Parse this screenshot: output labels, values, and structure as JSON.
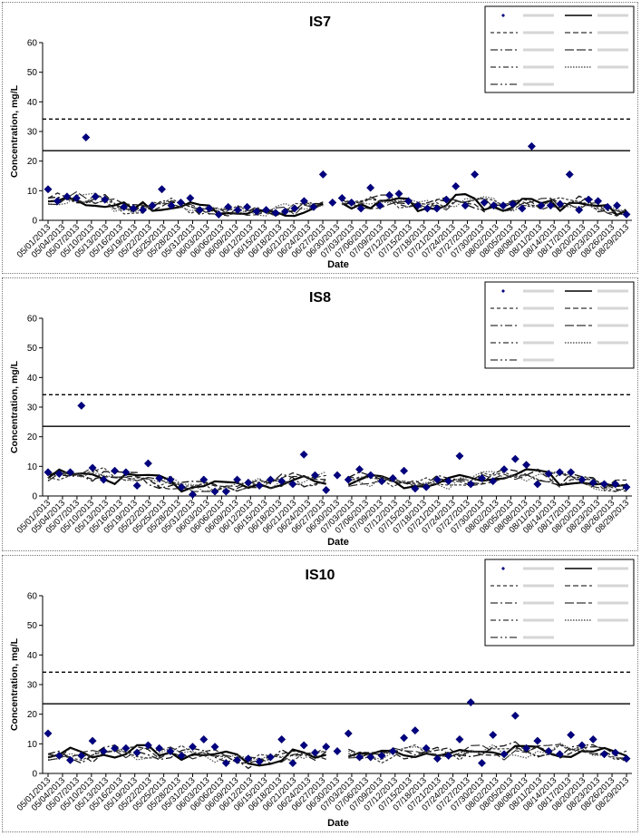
{
  "chart_data": [
    {
      "type": "scatter",
      "title": "IS7",
      "xlabel": "Date",
      "ylabel": "Concentration, mg/L",
      "ylim": [
        0,
        60
      ],
      "yticks": [
        0,
        10,
        20,
        30,
        40,
        50,
        60
      ],
      "xticks": [
        "05/01/2013",
        "05/04/2013",
        "05/07/2013",
        "05/10/2013",
        "05/13/2013",
        "05/16/2013",
        "05/19/2013",
        "05/22/2013",
        "05/25/2013",
        "05/28/2013",
        "05/31/2013",
        "06/03/2013",
        "06/06/2013",
        "06/09/2013",
        "06/12/2013",
        "06/15/2013",
        "06/18/2013",
        "06/21/2013",
        "06/24/2013",
        "06/27/2013",
        "06/30/2013",
        "07/03/2013",
        "07/06/2013",
        "07/09/2013",
        "07/12/2013",
        "07/15/2013",
        "07/18/2013",
        "07/21/2013",
        "07/24/2013",
        "07/27/2013",
        "07/30/2013",
        "08/02/2013",
        "08/05/2013",
        "08/08/2013",
        "08/11/2013",
        "08/14/2013",
        "08/17/2013",
        "08/20/2013",
        "08/23/2013",
        "08/26/2013",
        "08/29/2013"
      ],
      "legend": {
        "placement": "top-right",
        "entries": [
          "",
          "",
          "",
          "",
          "",
          "",
          "",
          "",
          "",
          ""
        ]
      },
      "reference_lines": [
        {
          "style": "dashed",
          "value": 34.2
        },
        {
          "style": "solid",
          "value": 23.5
        }
      ],
      "points": [
        [
          0,
          10.5
        ],
        [
          1,
          6.5
        ],
        [
          2,
          8
        ],
        [
          3,
          7.5
        ],
        [
          4,
          28
        ],
        [
          5,
          8
        ],
        [
          6,
          7
        ],
        [
          8,
          4.5
        ],
        [
          9,
          4
        ],
        [
          10,
          3.5
        ],
        [
          11,
          5
        ],
        [
          12,
          10.5
        ],
        [
          13,
          5
        ],
        [
          14,
          6
        ],
        [
          15,
          7.5
        ],
        [
          16,
          3.5
        ],
        [
          17,
          4
        ],
        [
          18,
          2
        ],
        [
          19,
          4.5
        ],
        [
          20,
          3.5
        ],
        [
          21,
          4.5
        ],
        [
          22,
          3
        ],
        [
          23,
          3.5
        ],
        [
          24,
          2.5
        ],
        [
          25,
          3
        ],
        [
          26,
          4
        ],
        [
          27,
          6.5
        ],
        [
          28,
          4.5
        ],
        [
          29,
          15.5
        ],
        [
          30,
          6
        ],
        [
          31,
          7.5
        ],
        [
          32,
          6
        ],
        [
          33,
          4
        ],
        [
          34,
          11
        ],
        [
          35,
          5
        ],
        [
          36,
          8.5
        ],
        [
          37,
          9
        ],
        [
          38,
          6.5
        ],
        [
          39,
          5
        ],
        [
          40,
          4
        ],
        [
          41,
          4
        ],
        [
          42,
          7
        ],
        [
          43,
          11.5
        ],
        [
          44,
          5
        ],
        [
          45,
          15.5
        ],
        [
          46,
          6
        ],
        [
          47,
          5
        ],
        [
          48,
          5
        ],
        [
          49,
          5.5
        ],
        [
          50,
          4
        ],
        [
          51,
          25
        ],
        [
          52,
          5
        ],
        [
          53,
          5
        ],
        [
          54,
          5.5
        ],
        [
          55,
          15.5
        ],
        [
          56,
          3.5
        ],
        [
          57,
          7
        ],
        [
          58,
          6.5
        ],
        [
          59,
          4.5
        ],
        [
          60,
          5
        ],
        [
          61,
          2
        ]
      ],
      "series_count": 9
    },
    {
      "type": "scatter",
      "title": "IS8",
      "xlabel": "Date",
      "ylabel": "Concentration, mg/L",
      "ylim": [
        0,
        60
      ],
      "yticks": [
        0,
        10,
        20,
        30,
        40,
        50,
        60
      ],
      "xticks": [
        "05/01/2013",
        "05/04/2013",
        "05/07/2013",
        "05/10/2013",
        "05/13/2013",
        "05/16/2013",
        "05/19/2013",
        "05/22/2013",
        "05/25/2013",
        "05/28/2013",
        "05/31/2013",
        "06/03/2013",
        "06/06/2013",
        "06/09/2013",
        "06/12/2013",
        "06/15/2013",
        "06/18/2013",
        "06/21/2013",
        "06/24/2013",
        "06/27/2013",
        "06/30/2013",
        "07/03/2013",
        "07/06/2013",
        "07/09/2013",
        "07/12/2013",
        "07/15/2013",
        "07/18/2013",
        "07/21/2013",
        "07/24/2013",
        "07/27/2013",
        "07/30/2013",
        "08/02/2013",
        "08/05/2013",
        "08/08/2013",
        "08/11/2013",
        "08/14/2013",
        "08/17/2013",
        "08/20/2013",
        "08/23/2013",
        "08/26/2013",
        "08/29/2013"
      ],
      "legend": {
        "placement": "top-right",
        "entries": [
          "",
          "",
          "",
          "",
          "",
          "",
          "",
          "",
          "",
          ""
        ]
      },
      "reference_lines": [
        {
          "style": "dashed",
          "value": 34.2
        },
        {
          "style": "solid",
          "value": 23.5
        }
      ],
      "points": [
        [
          0,
          8
        ],
        [
          1,
          7.5
        ],
        [
          2,
          8
        ],
        [
          3,
          30.5
        ],
        [
          4,
          9.5
        ],
        [
          5,
          5.5
        ],
        [
          6,
          8.5
        ],
        [
          7,
          8
        ],
        [
          8,
          3.5
        ],
        [
          9,
          11
        ],
        [
          10,
          6
        ],
        [
          11,
          5.5
        ],
        [
          12,
          3
        ],
        [
          13,
          0.5
        ],
        [
          14,
          5.5
        ],
        [
          15,
          1.5
        ],
        [
          16,
          1.5
        ],
        [
          17,
          5.5
        ],
        [
          18,
          4.5
        ],
        [
          19,
          3.5
        ],
        [
          20,
          5.5
        ],
        [
          21,
          5
        ],
        [
          22,
          4
        ],
        [
          23,
          14
        ],
        [
          24,
          7
        ],
        [
          25,
          2
        ],
        [
          26,
          7
        ],
        [
          27,
          5.5
        ],
        [
          28,
          9
        ],
        [
          29,
          7
        ],
        [
          30,
          5
        ],
        [
          31,
          6
        ],
        [
          32,
          8.5
        ],
        [
          33,
          2.5
        ],
        [
          34,
          3
        ],
        [
          35,
          5.5
        ],
        [
          36,
          5
        ],
        [
          37,
          13.5
        ],
        [
          38,
          4
        ],
        [
          39,
          6
        ],
        [
          40,
          5
        ],
        [
          41,
          9
        ],
        [
          42,
          12.5
        ],
        [
          43,
          10.5
        ],
        [
          44,
          4
        ],
        [
          45,
          7.5
        ],
        [
          46,
          8
        ],
        [
          47,
          8
        ],
        [
          48,
          5.5
        ],
        [
          49,
          4.5
        ],
        [
          50,
          4
        ],
        [
          51,
          4
        ],
        [
          52,
          3
        ]
      ],
      "series_count": 9
    },
    {
      "type": "scatter",
      "title": "IS10",
      "xlabel": "Date",
      "ylabel": "Concentration, mg/L",
      "ylim": [
        0,
        60
      ],
      "yticks": [
        0,
        10,
        20,
        30,
        40,
        50,
        60
      ],
      "xticks": [
        "05/01/2013",
        "05/04/2013",
        "05/07/2013",
        "05/10/2013",
        "05/13/2013",
        "05/16/2013",
        "05/19/2013",
        "05/22/2013",
        "05/25/2013",
        "05/28/2013",
        "05/31/2013",
        "06/03/2013",
        "06/06/2013",
        "06/09/2013",
        "06/12/2013",
        "06/15/2013",
        "06/18/2013",
        "06/21/2013",
        "06/24/2013",
        "06/27/2013",
        "06/30/2013",
        "07/03/2013",
        "07/06/2013",
        "07/09/2013",
        "07/12/2013",
        "07/15/2013",
        "07/18/2013",
        "07/21/2013",
        "07/24/2013",
        "07/27/2013",
        "07/30/2013",
        "08/02/2013",
        "08/05/2013",
        "08/08/2013",
        "08/11/2013",
        "08/14/2013",
        "08/17/2013",
        "08/20/2013",
        "08/23/2013",
        "08/26/2013",
        "08/29/2013"
      ],
      "legend": {
        "placement": "top-right",
        "entries": [
          "",
          "",
          "",
          "",
          "",
          "",
          "",
          "",
          "",
          ""
        ]
      },
      "reference_lines": [
        {
          "style": "dashed",
          "value": 34.2
        },
        {
          "style": "solid",
          "value": 23.5
        }
      ],
      "points": [
        [
          0,
          13.5
        ],
        [
          1,
          6
        ],
        [
          2,
          4.5
        ],
        [
          3,
          6
        ],
        [
          4,
          11
        ],
        [
          5,
          7.5
        ],
        [
          6,
          8.5
        ],
        [
          7,
          8.5
        ],
        [
          8,
          7
        ],
        [
          9,
          9.5
        ],
        [
          10,
          8.5
        ],
        [
          11,
          7.5
        ],
        [
          12,
          6
        ],
        [
          13,
          9
        ],
        [
          14,
          11.5
        ],
        [
          15,
          9
        ],
        [
          16,
          3.5
        ],
        [
          17,
          4.5
        ],
        [
          18,
          5
        ],
        [
          19,
          4
        ],
        [
          20,
          5.5
        ],
        [
          21,
          11.5
        ],
        [
          22,
          3.5
        ],
        [
          23,
          9.5
        ],
        [
          24,
          7
        ],
        [
          25,
          9
        ],
        [
          26,
          7.5
        ],
        [
          27,
          13.5
        ],
        [
          28,
          5.5
        ],
        [
          29,
          5.5
        ],
        [
          30,
          6
        ],
        [
          31,
          7.5
        ],
        [
          32,
          12
        ],
        [
          33,
          14.5
        ],
        [
          34,
          8.5
        ],
        [
          35,
          5
        ],
        [
          36,
          6
        ],
        [
          37,
          11.5
        ],
        [
          38,
          24
        ],
        [
          39,
          3.5
        ],
        [
          40,
          13
        ],
        [
          41,
          6.5
        ],
        [
          42,
          19.5
        ],
        [
          43,
          8.5
        ],
        [
          44,
          11
        ],
        [
          45,
          7.5
        ],
        [
          46,
          6.5
        ],
        [
          47,
          13
        ],
        [
          48,
          9.5
        ],
        [
          49,
          11.5
        ],
        [
          50,
          6.5
        ],
        [
          51,
          7
        ],
        [
          52,
          5
        ]
      ],
      "series_count": 9
    }
  ]
}
